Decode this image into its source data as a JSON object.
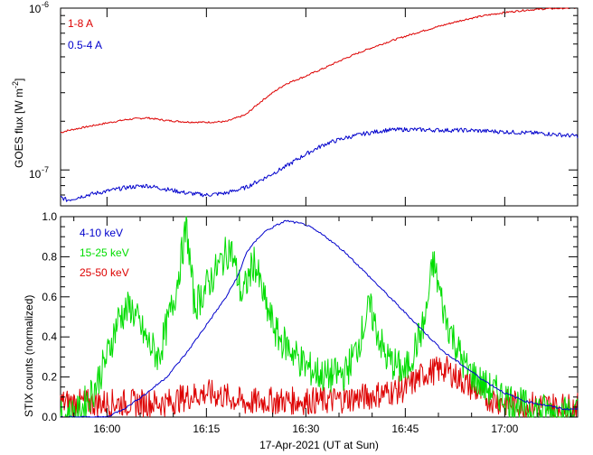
{
  "chart_data": [
    {
      "type": "line",
      "ylabel": "GOES flux [W m",
      "ylabel_sup": "-2",
      "ylabel_close": "]",
      "yscale": "log",
      "ylim": [
        6e-08,
        1e-06
      ],
      "xlim": [
        15.8833,
        17.1833
      ],
      "ytick_labels": [
        {
          "value": 1e-06,
          "base": "10",
          "exp": "-6"
        },
        {
          "value": 1e-07,
          "base": "10",
          "exp": "-7"
        }
      ],
      "series": [
        {
          "name": "1-8 A",
          "color": "#dd0000",
          "x": [
            15.8833,
            15.9,
            15.95,
            16.0,
            16.05,
            16.1,
            16.15,
            16.2,
            16.25,
            16.3,
            16.35,
            16.4,
            16.45,
            16.5,
            16.55,
            16.6,
            16.65,
            16.7,
            16.75,
            16.8,
            16.85,
            16.9,
            16.95,
            17.0,
            17.05,
            17.1,
            17.15,
            17.1833
          ],
          "y": [
            1.7e-07,
            1.75e-07,
            1.85e-07,
            1.95e-07,
            2.05e-07,
            2.1e-07,
            2.02e-07,
            1.98e-07,
            1.97e-07,
            1.99e-07,
            2.2e-07,
            2.8e-07,
            3.4e-07,
            3.8e-07,
            4.3e-07,
            4.9e-07,
            5.5e-07,
            6.1e-07,
            6.7e-07,
            7.3e-07,
            7.9e-07,
            8.5e-07,
            9e-07,
            9.4e-07,
            9.7e-07,
            9.9e-07,
            1e-06,
            1e-06
          ]
        },
        {
          "name": "0.5-4 A",
          "color": "#0000cc",
          "x": [
            15.8833,
            15.9,
            15.95,
            16.0,
            16.05,
            16.1,
            16.15,
            16.2,
            16.25,
            16.3,
            16.35,
            16.4,
            16.45,
            16.5,
            16.55,
            16.6,
            16.65,
            16.7,
            16.75,
            16.8,
            16.85,
            16.9,
            16.95,
            17.0,
            17.05,
            17.1,
            17.15,
            17.1833
          ],
          "y": [
            6.8e-08,
            6.5e-08,
            7e-08,
            7.4e-08,
            7.8e-08,
            8e-08,
            7.6e-08,
            7.2e-08,
            7e-08,
            7.2e-08,
            7.8e-08,
            9e-08,
            1.05e-07,
            1.25e-07,
            1.45e-07,
            1.58e-07,
            1.68e-07,
            1.76e-07,
            1.78e-07,
            1.77e-07,
            1.76e-07,
            1.76e-07,
            1.74e-07,
            1.72e-07,
            1.7e-07,
            1.68e-07,
            1.64e-07,
            1.62e-07
          ]
        }
      ]
    },
    {
      "type": "line",
      "ylabel": "STIX counts (normalized)",
      "xlabel": "17-Apr-2021 (UT at Sun)",
      "ylim": [
        0,
        1.0
      ],
      "xlim": [
        15.8833,
        17.1833
      ],
      "yticks": [
        0.0,
        0.2,
        0.4,
        0.6,
        0.8,
        1.0
      ],
      "ytick_labels": [
        "0.0",
        "0.2",
        "0.4",
        "0.6",
        "0.8",
        "1.0"
      ],
      "xticks": [
        16.0,
        16.25,
        16.5,
        16.75,
        17.0
      ],
      "xtick_labels": [
        "16:00",
        "16:15",
        "16:30",
        "16:45",
        "17:00"
      ],
      "series": [
        {
          "name": "4-10 keV",
          "color": "#0000cc",
          "x": [
            15.8833,
            15.95,
            16.0,
            16.05,
            16.1,
            16.15,
            16.2,
            16.25,
            16.3,
            16.333,
            16.35,
            16.383,
            16.4,
            16.45,
            16.5,
            16.55,
            16.6,
            16.65,
            16.7,
            16.75,
            16.8,
            16.85,
            16.9,
            16.95,
            17.0,
            17.05,
            17.1,
            17.15,
            17.1833
          ],
          "y": [
            0.0,
            0.0,
            0.0,
            0.05,
            0.12,
            0.2,
            0.32,
            0.46,
            0.6,
            0.72,
            0.82,
            0.9,
            0.93,
            0.98,
            0.96,
            0.9,
            0.82,
            0.72,
            0.62,
            0.52,
            0.42,
            0.32,
            0.25,
            0.18,
            0.12,
            0.08,
            0.06,
            0.04,
            0.04
          ]
        },
        {
          "name": "15-25 keV",
          "color": "#00dd00",
          "x": [
            15.8833,
            15.93,
            15.97,
            16.0,
            16.03,
            16.06,
            16.1,
            16.13,
            16.17,
            16.2,
            16.22,
            16.25,
            16.28,
            16.31,
            16.34,
            16.37,
            16.4,
            16.43,
            16.47,
            16.5,
            16.55,
            16.6,
            16.63,
            16.66,
            16.7,
            16.75,
            16.8,
            16.82,
            16.85,
            16.9,
            16.95,
            17.0,
            17.05,
            17.1,
            17.15,
            17.1833
          ],
          "y": [
            0.0,
            0.02,
            0.15,
            0.3,
            0.5,
            0.55,
            0.38,
            0.3,
            0.6,
            0.95,
            0.55,
            0.65,
            0.75,
            0.85,
            0.6,
            0.78,
            0.55,
            0.4,
            0.32,
            0.25,
            0.2,
            0.22,
            0.35,
            0.55,
            0.3,
            0.22,
            0.48,
            0.78,
            0.5,
            0.25,
            0.15,
            0.1,
            0.05,
            0.03,
            0.02,
            0.02
          ]
        },
        {
          "name": "25-50 keV",
          "color": "#dd0000",
          "x": [
            15.8833,
            15.95,
            16.0,
            16.05,
            16.1,
            16.15,
            16.2,
            16.25,
            16.3,
            16.35,
            16.4,
            16.45,
            16.5,
            16.55,
            16.6,
            16.65,
            16.7,
            16.75,
            16.8,
            16.85,
            16.9,
            16.95,
            17.0,
            17.05,
            17.1,
            17.15,
            17.1833
          ],
          "y": [
            0.05,
            0.05,
            0.05,
            0.05,
            0.05,
            0.05,
            0.08,
            0.1,
            0.08,
            0.05,
            0.06,
            0.06,
            0.06,
            0.06,
            0.07,
            0.08,
            0.1,
            0.12,
            0.2,
            0.22,
            0.15,
            0.08,
            0.05,
            0.04,
            0.04,
            0.03,
            0.03
          ]
        }
      ]
    }
  ]
}
